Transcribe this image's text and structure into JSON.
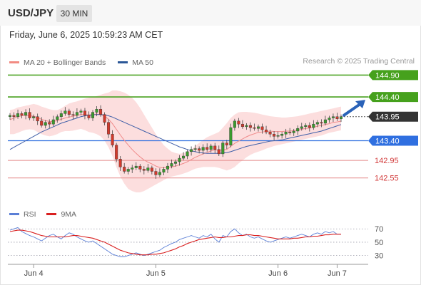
{
  "header": {
    "symbol": "USD/JPY",
    "period": "30 MIN"
  },
  "datetime": "Friday, June 6, 2025 10:59:23 AM CET",
  "legend": [
    {
      "label": "MA 20 + Bollinger Bands",
      "color": "#f28b82"
    },
    {
      "label": "MA 50",
      "color": "#2b5797"
    }
  ],
  "credit": "Research © 2025 Trading Central",
  "rsi_legend": [
    {
      "label": "RSI",
      "color": "#5b7fd6"
    },
    {
      "label": "9MA",
      "color": "#d92020"
    }
  ],
  "chart_data": [
    {
      "type": "candlestick",
      "ylim": [
        142.35,
        145.02
      ],
      "levels": [
        {
          "value": 144.9,
          "label": "144.90",
          "style": "green-tag"
        },
        {
          "value": 144.4,
          "label": "144.40",
          "style": "green-tag"
        },
        {
          "value": 143.95,
          "label": "143.95",
          "style": "dark-tag"
        },
        {
          "value": 143.4,
          "label": "143.40",
          "style": "blue-tag"
        },
        {
          "value": 142.95,
          "label": "142.95",
          "style": "red-text"
        },
        {
          "value": 142.55,
          "label": "142.55",
          "style": "red-text"
        }
      ],
      "current_price": 143.95,
      "x_ticks": [
        "Jun 4",
        "Jun 5",
        "Jun 6",
        "Jun 7"
      ],
      "x_tick_index": [
        6,
        37,
        68,
        83
      ],
      "close": [
        143.98,
        143.95,
        144.02,
        143.98,
        144.05,
        143.92,
        143.95,
        143.85,
        143.75,
        143.82,
        143.78,
        143.88,
        143.95,
        144.02,
        144.08,
        144.0,
        143.98,
        144.05,
        144.08,
        143.98,
        143.92,
        144.05,
        144.12,
        144.0,
        143.82,
        143.55,
        143.3,
        142.98,
        142.8,
        142.7,
        142.75,
        142.78,
        142.82,
        142.75,
        142.72,
        142.78,
        142.7,
        142.62,
        142.68,
        142.75,
        142.82,
        142.88,
        142.92,
        143.0,
        143.05,
        143.15,
        143.2,
        143.22,
        143.18,
        143.25,
        143.2,
        143.28,
        143.2,
        143.1,
        143.35,
        143.3,
        143.7,
        143.85,
        143.78,
        143.72,
        143.75,
        143.7,
        143.68,
        143.72,
        143.65,
        143.6,
        143.55,
        143.5,
        143.52,
        143.55,
        143.6,
        143.58,
        143.62,
        143.68,
        143.72,
        143.75,
        143.7,
        143.78,
        143.82,
        143.8,
        143.88,
        143.92,
        143.95,
        143.9,
        143.95
      ],
      "ma20": [
        143.88,
        143.92,
        143.95,
        143.97,
        143.98,
        143.97,
        143.96,
        143.93,
        143.89,
        143.86,
        143.84,
        143.84,
        143.86,
        143.89,
        143.92,
        143.94,
        143.96,
        143.98,
        144.0,
        144.0,
        143.99,
        144.0,
        144.01,
        144.0,
        143.96,
        143.89,
        143.79,
        143.66,
        143.53,
        143.41,
        143.3,
        143.2,
        143.11,
        143.03,
        142.96,
        142.91,
        142.87,
        142.82,
        142.79,
        142.78,
        142.79,
        142.8,
        142.82,
        142.85,
        142.88,
        142.92,
        142.97,
        143.02,
        143.06,
        143.1,
        143.13,
        143.17,
        143.19,
        143.18,
        143.19,
        143.2,
        143.27,
        143.34,
        143.39,
        143.44,
        143.49,
        143.53,
        143.56,
        143.59,
        143.6,
        143.61,
        143.62,
        143.61,
        143.61,
        143.61,
        143.62,
        143.62,
        143.63,
        143.64,
        143.66,
        143.68,
        143.69,
        143.71,
        143.73,
        143.75,
        143.77,
        143.79,
        143.82,
        143.83,
        143.85
      ],
      "ma50": [
        143.2,
        143.25,
        143.3,
        143.35,
        143.4,
        143.45,
        143.5,
        143.55,
        143.6,
        143.64,
        143.68,
        143.72,
        143.76,
        143.8,
        143.83,
        143.86,
        143.89,
        143.92,
        143.95,
        143.97,
        143.98,
        143.99,
        144.0,
        144.0,
        143.99,
        143.97,
        143.94,
        143.9,
        143.86,
        143.82,
        143.78,
        143.74,
        143.7,
        143.66,
        143.62,
        143.58,
        143.54,
        143.5,
        143.46,
        143.42,
        143.38,
        143.34,
        143.3,
        143.26,
        143.23,
        143.2,
        143.17,
        143.15,
        143.13,
        143.12,
        143.11,
        143.11,
        143.11,
        143.11,
        143.12,
        143.13,
        143.15,
        143.18,
        143.21,
        143.24,
        143.27,
        143.29,
        143.31,
        143.33,
        143.35,
        143.37,
        143.39,
        143.4,
        143.41,
        143.42,
        143.44,
        143.46,
        143.48,
        143.5,
        143.52,
        143.54,
        143.56,
        143.58,
        143.6,
        143.62,
        143.65,
        143.68,
        143.71,
        143.74,
        143.77
      ],
      "bb_upper": [
        144.1,
        144.12,
        144.16,
        144.18,
        144.2,
        144.22,
        144.24,
        144.22,
        144.18,
        144.15,
        144.12,
        144.1,
        144.1,
        144.14,
        144.2,
        144.25,
        144.28,
        144.3,
        144.33,
        144.36,
        144.38,
        144.4,
        144.42,
        144.45,
        144.48,
        144.5,
        144.55,
        144.55,
        144.53,
        144.5,
        144.45,
        144.38,
        144.28,
        144.15,
        144.0,
        143.85,
        143.7,
        143.55,
        143.42,
        143.3,
        143.22,
        143.15,
        143.12,
        143.1,
        143.12,
        143.15,
        143.2,
        143.28,
        143.35,
        143.42,
        143.48,
        143.52,
        143.56,
        143.6,
        143.7,
        143.8,
        143.92,
        144.0,
        144.05,
        144.06,
        144.06,
        144.05,
        144.04,
        144.02,
        144.0,
        143.98,
        143.96,
        143.95,
        143.94,
        143.93,
        143.93,
        143.94,
        143.95,
        143.96,
        143.98,
        144.0,
        144.02,
        144.04,
        144.06,
        144.08,
        144.1,
        144.12,
        144.14,
        144.16,
        144.18
      ],
      "bb_lower": [
        143.55,
        143.55,
        143.58,
        143.62,
        143.65,
        143.66,
        143.65,
        143.6,
        143.55,
        143.52,
        143.5,
        143.52,
        143.55,
        143.6,
        143.62,
        143.62,
        143.63,
        143.65,
        143.67,
        143.64,
        143.6,
        143.58,
        143.55,
        143.5,
        143.4,
        143.25,
        143.05,
        142.8,
        142.58,
        142.42,
        142.3,
        142.25,
        142.22,
        142.22,
        142.25,
        142.3,
        142.35,
        142.4,
        142.45,
        142.5,
        142.55,
        142.58,
        142.6,
        142.62,
        142.65,
        142.68,
        142.72,
        142.76,
        142.78,
        142.8,
        142.8,
        142.8,
        142.8,
        142.78,
        142.75,
        142.72,
        142.75,
        142.8,
        142.88,
        142.95,
        143.02,
        143.08,
        143.12,
        143.15,
        143.18,
        143.22,
        143.25,
        143.28,
        143.3,
        143.32,
        143.34,
        143.36,
        143.38,
        143.4,
        143.42,
        143.44,
        143.46,
        143.48,
        143.5,
        143.52,
        143.55,
        143.58,
        143.6,
        143.62,
        143.64
      ],
      "forecast_arrow": {
        "from": 143.95,
        "to": 144.4
      }
    },
    {
      "type": "line",
      "series": [
        {
          "name": "RSI",
          "values": [
            68,
            70,
            72,
            66,
            63,
            60,
            58,
            55,
            52,
            56,
            60,
            62,
            58,
            55,
            60,
            64,
            62,
            58,
            55,
            52,
            50,
            52,
            48,
            44,
            40,
            36,
            32,
            30,
            28,
            28,
            30,
            32,
            34,
            32,
            30,
            32,
            34,
            36,
            38,
            42,
            45,
            48,
            50,
            54,
            56,
            58,
            60,
            58,
            56,
            60,
            58,
            62,
            55,
            50,
            60,
            58,
            66,
            70,
            64,
            60,
            62,
            58,
            56,
            58,
            55,
            52,
            50,
            52,
            54,
            56,
            58,
            56,
            58,
            60,
            62,
            60,
            58,
            62,
            64,
            62,
            66,
            64,
            66,
            62,
            62
          ]
        },
        {
          "name": "9MA",
          "values": [
            66,
            67,
            68,
            68,
            67,
            66,
            64,
            62,
            60,
            59,
            58,
            58,
            58,
            58,
            58,
            59,
            60,
            60,
            59,
            58,
            57,
            56,
            54,
            52,
            50,
            47,
            44,
            41,
            38,
            36,
            34,
            33,
            32,
            31,
            31,
            31,
            32,
            32,
            33,
            34,
            36,
            38,
            40,
            43,
            45,
            48,
            50,
            52,
            54,
            55,
            56,
            57,
            58,
            57,
            57,
            58,
            58,
            59,
            60,
            60,
            61,
            61,
            60,
            60,
            59,
            58,
            57,
            56,
            55,
            55,
            55,
            55,
            56,
            56,
            57,
            58,
            58,
            59,
            59,
            60,
            61,
            61,
            62,
            62,
            62
          ]
        }
      ],
      "yticks": [
        30,
        50,
        70
      ],
      "ylim": [
        20,
        82
      ]
    }
  ]
}
